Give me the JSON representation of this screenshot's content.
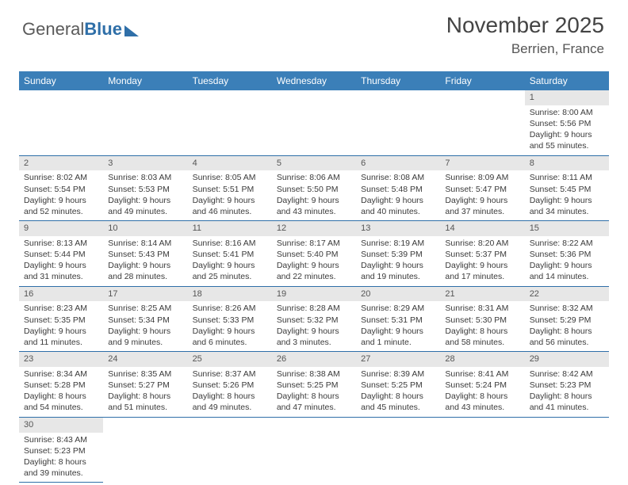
{
  "logo": {
    "text1": "General",
    "text2": "Blue"
  },
  "title": "November 2025",
  "location": "Berrien, France",
  "colors": {
    "header_bg": "#3b7fb8",
    "header_text": "#ffffff",
    "daynum_bg": "#e7e7e7",
    "row_border": "#2f6fa8",
    "body_text": "#3a3a3a",
    "title_text": "#444444"
  },
  "fonts": {
    "title_size_pt": 21,
    "location_size_pt": 13,
    "header_size_pt": 9,
    "cell_size_pt": 8
  },
  "day_headers": [
    "Sunday",
    "Monday",
    "Tuesday",
    "Wednesday",
    "Thursday",
    "Friday",
    "Saturday"
  ],
  "weeks": [
    [
      null,
      null,
      null,
      null,
      null,
      null,
      {
        "n": "1",
        "sunrise": "Sunrise: 8:00 AM",
        "sunset": "Sunset: 5:56 PM",
        "daylight": "Daylight: 9 hours and 55 minutes."
      }
    ],
    [
      {
        "n": "2",
        "sunrise": "Sunrise: 8:02 AM",
        "sunset": "Sunset: 5:54 PM",
        "daylight": "Daylight: 9 hours and 52 minutes."
      },
      {
        "n": "3",
        "sunrise": "Sunrise: 8:03 AM",
        "sunset": "Sunset: 5:53 PM",
        "daylight": "Daylight: 9 hours and 49 minutes."
      },
      {
        "n": "4",
        "sunrise": "Sunrise: 8:05 AM",
        "sunset": "Sunset: 5:51 PM",
        "daylight": "Daylight: 9 hours and 46 minutes."
      },
      {
        "n": "5",
        "sunrise": "Sunrise: 8:06 AM",
        "sunset": "Sunset: 5:50 PM",
        "daylight": "Daylight: 9 hours and 43 minutes."
      },
      {
        "n": "6",
        "sunrise": "Sunrise: 8:08 AM",
        "sunset": "Sunset: 5:48 PM",
        "daylight": "Daylight: 9 hours and 40 minutes."
      },
      {
        "n": "7",
        "sunrise": "Sunrise: 8:09 AM",
        "sunset": "Sunset: 5:47 PM",
        "daylight": "Daylight: 9 hours and 37 minutes."
      },
      {
        "n": "8",
        "sunrise": "Sunrise: 8:11 AM",
        "sunset": "Sunset: 5:45 PM",
        "daylight": "Daylight: 9 hours and 34 minutes."
      }
    ],
    [
      {
        "n": "9",
        "sunrise": "Sunrise: 8:13 AM",
        "sunset": "Sunset: 5:44 PM",
        "daylight": "Daylight: 9 hours and 31 minutes."
      },
      {
        "n": "10",
        "sunrise": "Sunrise: 8:14 AM",
        "sunset": "Sunset: 5:43 PM",
        "daylight": "Daylight: 9 hours and 28 minutes."
      },
      {
        "n": "11",
        "sunrise": "Sunrise: 8:16 AM",
        "sunset": "Sunset: 5:41 PM",
        "daylight": "Daylight: 9 hours and 25 minutes."
      },
      {
        "n": "12",
        "sunrise": "Sunrise: 8:17 AM",
        "sunset": "Sunset: 5:40 PM",
        "daylight": "Daylight: 9 hours and 22 minutes."
      },
      {
        "n": "13",
        "sunrise": "Sunrise: 8:19 AM",
        "sunset": "Sunset: 5:39 PM",
        "daylight": "Daylight: 9 hours and 19 minutes."
      },
      {
        "n": "14",
        "sunrise": "Sunrise: 8:20 AM",
        "sunset": "Sunset: 5:37 PM",
        "daylight": "Daylight: 9 hours and 17 minutes."
      },
      {
        "n": "15",
        "sunrise": "Sunrise: 8:22 AM",
        "sunset": "Sunset: 5:36 PM",
        "daylight": "Daylight: 9 hours and 14 minutes."
      }
    ],
    [
      {
        "n": "16",
        "sunrise": "Sunrise: 8:23 AM",
        "sunset": "Sunset: 5:35 PM",
        "daylight": "Daylight: 9 hours and 11 minutes."
      },
      {
        "n": "17",
        "sunrise": "Sunrise: 8:25 AM",
        "sunset": "Sunset: 5:34 PM",
        "daylight": "Daylight: 9 hours and 9 minutes."
      },
      {
        "n": "18",
        "sunrise": "Sunrise: 8:26 AM",
        "sunset": "Sunset: 5:33 PM",
        "daylight": "Daylight: 9 hours and 6 minutes."
      },
      {
        "n": "19",
        "sunrise": "Sunrise: 8:28 AM",
        "sunset": "Sunset: 5:32 PM",
        "daylight": "Daylight: 9 hours and 3 minutes."
      },
      {
        "n": "20",
        "sunrise": "Sunrise: 8:29 AM",
        "sunset": "Sunset: 5:31 PM",
        "daylight": "Daylight: 9 hours and 1 minute."
      },
      {
        "n": "21",
        "sunrise": "Sunrise: 8:31 AM",
        "sunset": "Sunset: 5:30 PM",
        "daylight": "Daylight: 8 hours and 58 minutes."
      },
      {
        "n": "22",
        "sunrise": "Sunrise: 8:32 AM",
        "sunset": "Sunset: 5:29 PM",
        "daylight": "Daylight: 8 hours and 56 minutes."
      }
    ],
    [
      {
        "n": "23",
        "sunrise": "Sunrise: 8:34 AM",
        "sunset": "Sunset: 5:28 PM",
        "daylight": "Daylight: 8 hours and 54 minutes."
      },
      {
        "n": "24",
        "sunrise": "Sunrise: 8:35 AM",
        "sunset": "Sunset: 5:27 PM",
        "daylight": "Daylight: 8 hours and 51 minutes."
      },
      {
        "n": "25",
        "sunrise": "Sunrise: 8:37 AM",
        "sunset": "Sunset: 5:26 PM",
        "daylight": "Daylight: 8 hours and 49 minutes."
      },
      {
        "n": "26",
        "sunrise": "Sunrise: 8:38 AM",
        "sunset": "Sunset: 5:25 PM",
        "daylight": "Daylight: 8 hours and 47 minutes."
      },
      {
        "n": "27",
        "sunrise": "Sunrise: 8:39 AM",
        "sunset": "Sunset: 5:25 PM",
        "daylight": "Daylight: 8 hours and 45 minutes."
      },
      {
        "n": "28",
        "sunrise": "Sunrise: 8:41 AM",
        "sunset": "Sunset: 5:24 PM",
        "daylight": "Daylight: 8 hours and 43 minutes."
      },
      {
        "n": "29",
        "sunrise": "Sunrise: 8:42 AM",
        "sunset": "Sunset: 5:23 PM",
        "daylight": "Daylight: 8 hours and 41 minutes."
      }
    ],
    [
      {
        "n": "30",
        "sunrise": "Sunrise: 8:43 AM",
        "sunset": "Sunset: 5:23 PM",
        "daylight": "Daylight: 8 hours and 39 minutes."
      },
      null,
      null,
      null,
      null,
      null,
      null
    ]
  ]
}
